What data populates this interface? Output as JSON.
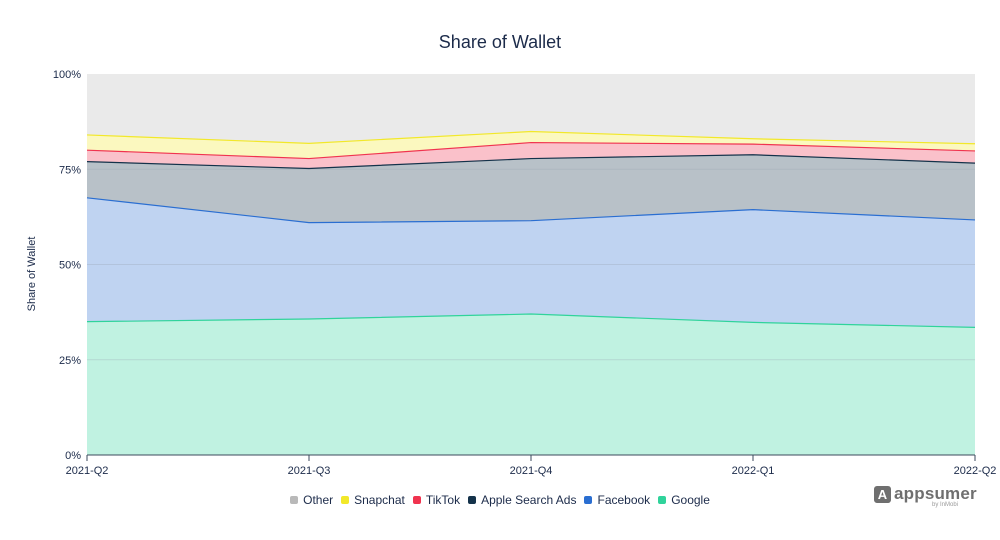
{
  "chart_data": {
    "type": "area",
    "stacked": true,
    "title": "Share of Wallet",
    "xlabel": "",
    "ylabel": "Share of Wallet",
    "categories": [
      "2021-Q2",
      "2021-Q3",
      "2021-Q4",
      "2022-Q1",
      "2022-Q2"
    ],
    "y_ticks": [
      "0%",
      "25%",
      "50%",
      "75%",
      "100%"
    ],
    "ylim": [
      0,
      100
    ],
    "series": [
      {
        "name": "Google",
        "color": "#30d39b",
        "values": [
          35.0,
          35.7,
          37.0,
          34.8,
          33.5
        ]
      },
      {
        "name": "Facebook",
        "color": "#2a6ed1",
        "values": [
          32.5,
          25.3,
          24.5,
          29.6,
          28.2
        ]
      },
      {
        "name": "Apple Search Ads",
        "color": "#14324a",
        "values": [
          9.5,
          14.2,
          16.3,
          14.4,
          14.9
        ]
      },
      {
        "name": "TikTok",
        "color": "#f0334f",
        "values": [
          3.0,
          2.6,
          4.2,
          2.8,
          3.2
        ]
      },
      {
        "name": "Snapchat",
        "color": "#f2e82a",
        "values": [
          4.0,
          4.0,
          2.9,
          1.4,
          1.9
        ]
      },
      {
        "name": "Other",
        "color": "#b9b9b9",
        "values": [
          16.0,
          18.2,
          15.1,
          17.0,
          18.3
        ]
      }
    ],
    "legend_order": [
      "Other",
      "Snapchat",
      "TikTok",
      "Apple Search Ads",
      "Facebook",
      "Google"
    ],
    "legend_position": "bottom"
  },
  "branding": {
    "logo_icon_name": "appsumer-logo-icon",
    "logo_mark": "A",
    "logo_text": "appsumer",
    "logo_sub": "by InMobi"
  }
}
